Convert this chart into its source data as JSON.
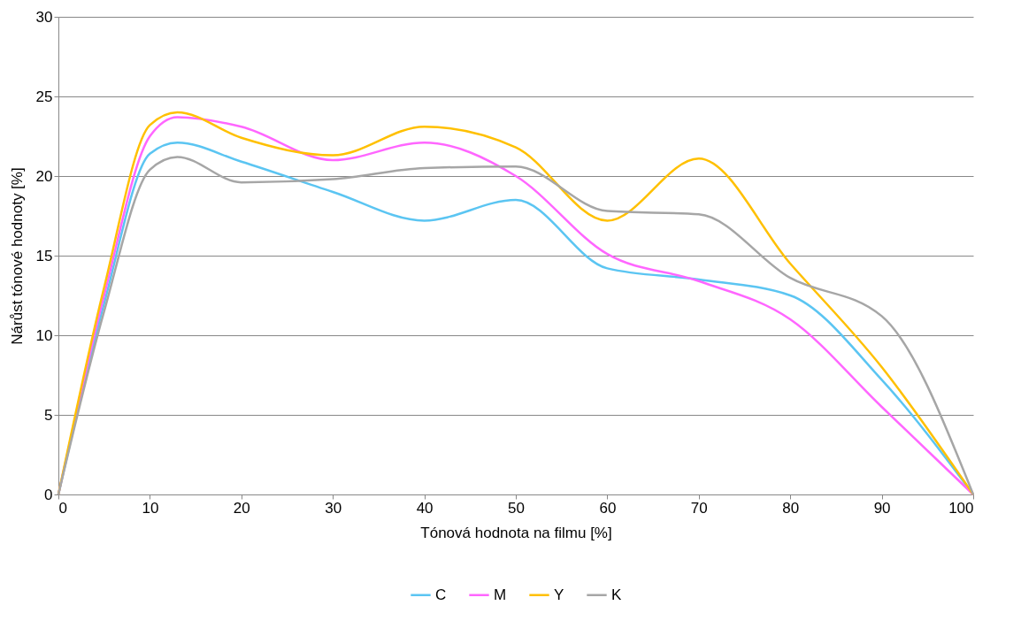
{
  "chart_data": {
    "type": "line",
    "xlabel": "Tónová hodnota na filmu [%]",
    "ylabel": "Nárůst tónové hodnoty [%]",
    "x": [
      0,
      5,
      10,
      13,
      20,
      30,
      40,
      50,
      60,
      70,
      80,
      90,
      100
    ],
    "xlim": [
      0,
      100
    ],
    "xticks": [
      0,
      10,
      20,
      30,
      40,
      50,
      60,
      70,
      80,
      90,
      100
    ],
    "ylim": [
      0,
      30
    ],
    "yticks": [
      0,
      5,
      10,
      15,
      20,
      25,
      30
    ],
    "grid": "y",
    "legend": "bottom",
    "marker": "none",
    "line_style": "solid",
    "series": [
      {
        "name": "C",
        "color": "#5bc5f2",
        "values": [
          0,
          12,
          21.4,
          22.1,
          20.9,
          19.0,
          17.2,
          18.5,
          14.2,
          13.5,
          12.5,
          7.2,
          0
        ]
      },
      {
        "name": "M",
        "color": "#ff66ff",
        "values": [
          0,
          12.5,
          22.5,
          23.7,
          23.1,
          21.0,
          22.1,
          20.0,
          15.1,
          13.4,
          11.0,
          5.5,
          0
        ]
      },
      {
        "name": "Y",
        "color": "#ffc000",
        "values": [
          0,
          13,
          23.2,
          24.0,
          22.4,
          21.3,
          23.1,
          21.8,
          17.2,
          21.1,
          14.5,
          8.0,
          0
        ]
      },
      {
        "name": "K",
        "color": "#a6a6a6",
        "values": [
          0,
          11.5,
          20.4,
          21.2,
          19.6,
          19.8,
          20.5,
          20.6,
          17.8,
          17.6,
          13.6,
          11.2,
          0
        ]
      }
    ]
  }
}
